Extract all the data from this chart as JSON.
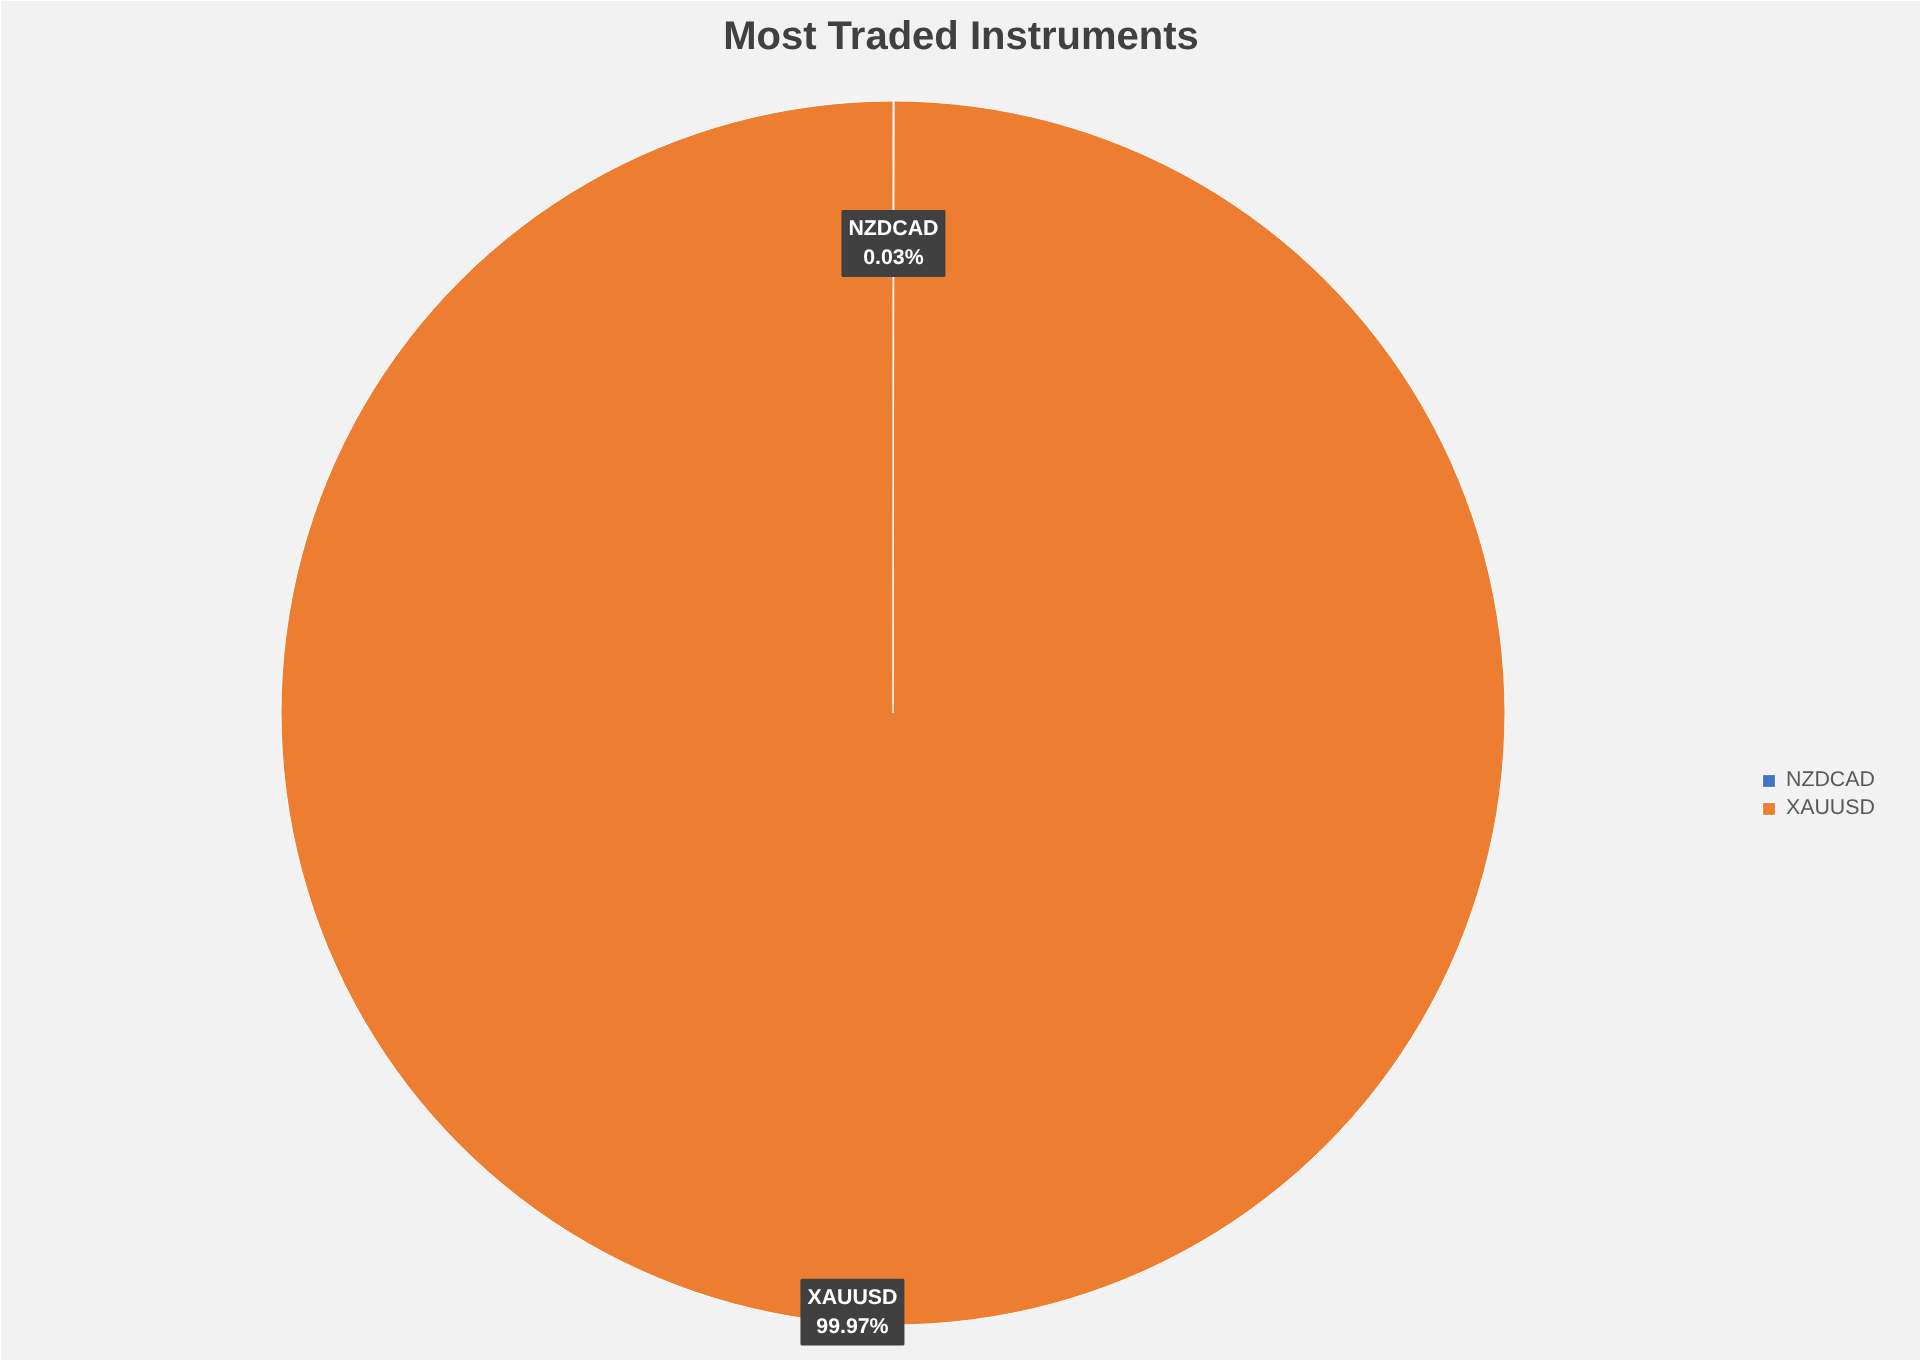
{
  "chart_data": {
    "type": "pie",
    "title": "Most Traded Instruments",
    "categories": [
      "NZDCAD",
      "XAUUSD"
    ],
    "values": [
      0.03,
      99.97
    ],
    "colors": [
      "#4472c4",
      "#ed7d31"
    ],
    "value_labels": [
      "0.03%",
      "99.97%"
    ],
    "legend": "right"
  }
}
